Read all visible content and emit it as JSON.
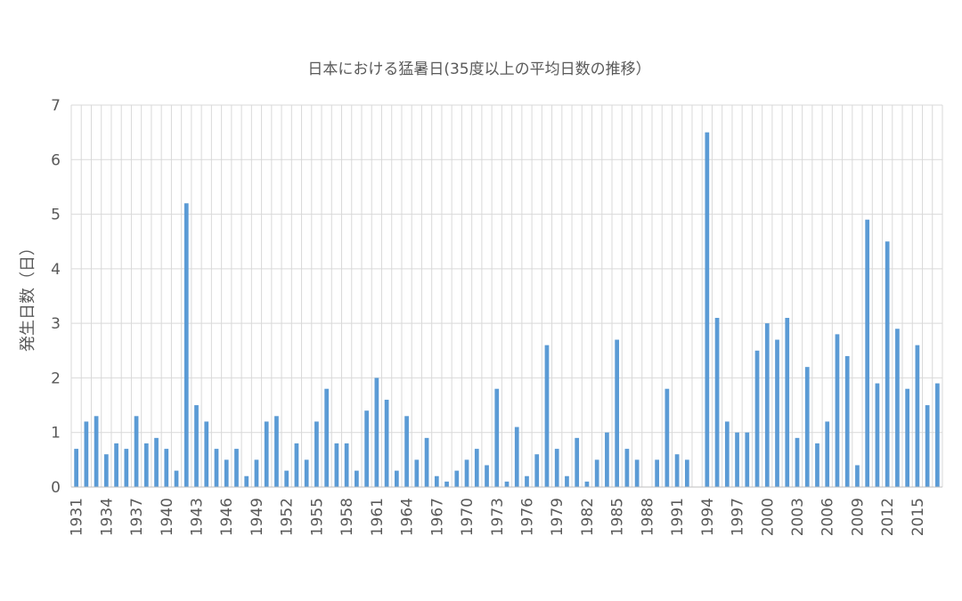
{
  "chart_data": {
    "type": "bar",
    "title": "日本における猛暑日(35度以上の平均日数の推移）",
    "xlabel": "",
    "ylabel": "発生日数（日）",
    "ylim": [
      0,
      7
    ],
    "yticks": [
      0,
      1,
      2,
      3,
      4,
      5,
      6,
      7
    ],
    "grid": true,
    "legend": "none",
    "bar_color": "#5b9bd5",
    "x_tick_labels": [
      "1931",
      "1934",
      "1937",
      "1940",
      "1943",
      "1946",
      "1949",
      "1952",
      "1955",
      "1958",
      "1961",
      "1964",
      "1967",
      "1970",
      "1973",
      "1976",
      "1979",
      "1982",
      "1985",
      "1988",
      "1991",
      "1994",
      "1997",
      "2000",
      "2003",
      "2006",
      "2009",
      "2012",
      "2015"
    ],
    "categories": [
      "1931",
      "1932",
      "1933",
      "1934",
      "1935",
      "1936",
      "1937",
      "1938",
      "1939",
      "1940",
      "1941",
      "1942",
      "1943",
      "1944",
      "1945",
      "1946",
      "1947",
      "1948",
      "1949",
      "1950",
      "1951",
      "1952",
      "1953",
      "1954",
      "1955",
      "1956",
      "1957",
      "1958",
      "1959",
      "1960",
      "1961",
      "1962",
      "1963",
      "1964",
      "1965",
      "1966",
      "1967",
      "1968",
      "1969",
      "1970",
      "1971",
      "1972",
      "1973",
      "1974",
      "1975",
      "1976",
      "1977",
      "1978",
      "1979",
      "1980",
      "1981",
      "1982",
      "1983",
      "1984",
      "1985",
      "1986",
      "1987",
      "1988",
      "1989",
      "1990",
      "1991",
      "1992",
      "1993",
      "1994",
      "1995",
      "1996",
      "1997",
      "1998",
      "1999",
      "2000",
      "2001",
      "2002",
      "2003",
      "2004",
      "2005",
      "2006",
      "2007",
      "2008",
      "2009",
      "2010",
      "2011",
      "2012",
      "2013",
      "2014",
      "2015",
      "2016",
      "2017"
    ],
    "values": [
      0.7,
      1.2,
      1.3,
      0.6,
      0.8,
      0.7,
      1.3,
      0.8,
      0.9,
      0.7,
      0.3,
      5.2,
      1.5,
      1.2,
      0.7,
      0.5,
      0.7,
      0.2,
      0.5,
      1.2,
      1.3,
      0.3,
      0.8,
      0.5,
      1.2,
      1.8,
      0.8,
      0.8,
      0.3,
      1.4,
      2.0,
      1.6,
      0.3,
      1.3,
      0.5,
      0.9,
      0.2,
      0.1,
      0.3,
      0.5,
      0.7,
      0.4,
      1.8,
      0.1,
      1.1,
      0.2,
      0.6,
      2.6,
      0.7,
      0.2,
      0.9,
      0.1,
      0.5,
      1.0,
      2.7,
      0.7,
      0.5,
      0.0,
      0.5,
      1.8,
      0.6,
      0.5,
      0.0,
      6.5,
      3.1,
      1.2,
      1.0,
      1.0,
      2.5,
      3.0,
      2.7,
      3.1,
      0.9,
      2.2,
      0.8,
      1.2,
      2.8,
      2.4,
      0.4,
      4.9,
      1.9,
      4.5,
      2.9,
      1.8,
      2.6,
      1.5,
      1.9
    ]
  }
}
